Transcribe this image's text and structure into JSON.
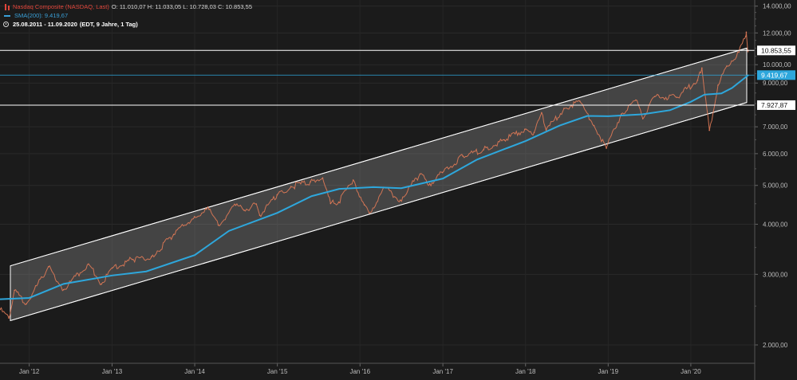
{
  "legend": {
    "title": "Nasdaq Composite (NASDAQ, Last)",
    "ohlc": "O: 11.010,07  H: 11.033,05  L: 10.728,03  C: 10.853,55",
    "sma": "SMA(200): 9.419,67",
    "range": "25.08.2011 - 11.09.2020",
    "range_note": "(EDT, 9 Jahre, 1 Tag)"
  },
  "colors": {
    "background": "#1b1b1b",
    "price": "#e07a57",
    "sma": "#2ea7dc",
    "channel_fill": "#8a8a8a",
    "lines": "#ffffff"
  },
  "chart_data": {
    "type": "line",
    "y_scale": "log",
    "ylim": [
      1800,
      14500
    ],
    "xlim": [
      "2011-08-25",
      "2020-09-11"
    ],
    "y_ticks": [
      {
        "value": 2000,
        "label": "2.000,00"
      },
      {
        "value": 3000,
        "label": "3.000,00"
      },
      {
        "value": 4000,
        "label": "4.000,00"
      },
      {
        "value": 5000,
        "label": "5.000,00"
      },
      {
        "value": 6000,
        "label": "6.000,00"
      },
      {
        "value": 7000,
        "label": "7.000,00"
      },
      {
        "value": 9000,
        "label": "9.000,00"
      },
      {
        "value": 10000,
        "label": "10.000,00"
      },
      {
        "value": 12000,
        "label": "12.000,00"
      },
      {
        "value": 14000,
        "label": "14.000,00"
      }
    ],
    "x_ticks": [
      {
        "date": "2012-01-01",
        "label": "Jan '12"
      },
      {
        "date": "2013-01-01",
        "label": "Jan '13"
      },
      {
        "date": "2014-01-01",
        "label": "Jan '14"
      },
      {
        "date": "2015-01-01",
        "label": "Jan '15"
      },
      {
        "date": "2016-01-01",
        "label": "Jan '16"
      },
      {
        "date": "2017-01-01",
        "label": "Jan '17"
      },
      {
        "date": "2018-01-01",
        "label": "Jan '18"
      },
      {
        "date": "2019-01-01",
        "label": "Jan '19"
      },
      {
        "date": "2020-01-01",
        "label": "Jan '20"
      }
    ],
    "series": [
      {
        "name": "Nasdaq Composite (NASDAQ, Last)",
        "role": "price",
        "x": [
          "2011-08-25",
          "2011-10-03",
          "2011-10-28",
          "2011-12-19",
          "2012-03-26",
          "2012-06-01",
          "2012-09-19",
          "2012-11-15",
          "2013-01-02",
          "2013-03-31",
          "2013-06-24",
          "2013-09-30",
          "2013-12-31",
          "2014-03-05",
          "2014-04-15",
          "2014-07-01",
          "2014-08-07",
          "2014-09-30",
          "2014-10-15",
          "2014-12-31",
          "2015-03-02",
          "2015-05-27",
          "2015-07-20",
          "2015-08-24",
          "2015-09-29",
          "2015-12-02",
          "2016-01-20",
          "2016-02-11",
          "2016-04-20",
          "2016-06-27",
          "2016-09-22",
          "2016-11-04",
          "2016-12-30",
          "2017-03-31",
          "2017-06-30",
          "2017-09-29",
          "2017-12-29",
          "2018-02-08",
          "2018-03-13",
          "2018-04-02",
          "2018-06-20",
          "2018-08-29",
          "2018-10-30",
          "2018-12-24",
          "2019-02-28",
          "2019-05-03",
          "2019-06-03",
          "2019-07-26",
          "2019-10-31",
          "2020-01-31",
          "2020-02-19",
          "2020-03-23",
          "2020-04-30",
          "2020-06-08",
          "2020-07-31",
          "2020-08-31",
          "2020-09-02",
          "2020-09-08",
          "2020-09-11"
        ],
        "values": [
          2450,
          2335,
          2737,
          2530,
          3134,
          2747,
          3183,
          2836,
          3112,
          3268,
          3320,
          3772,
          4177,
          4357,
          3980,
          4459,
          4335,
          4493,
          4213,
          4736,
          4963,
          5106,
          5218,
          4506,
          4543,
          5156,
          4472,
          4266,
          4940,
          4595,
          5339,
          5046,
          5383,
          5912,
          6140,
          6496,
          6903,
          6777,
          7588,
          6870,
          7781,
          8109,
          7050,
          6192,
          7533,
          8164,
          7333,
          8330,
          8292,
          9150,
          9817,
          6860,
          8890,
          9924,
          10745,
          11775,
          12056,
          10847,
          10853
        ]
      },
      {
        "name": "SMA(200): 9.419,67",
        "role": "sma",
        "x": [
          "2011-08-25",
          "2012-01-01",
          "2012-06-01",
          "2013-01-01",
          "2013-06-01",
          "2014-01-01",
          "2014-06-01",
          "2015-01-01",
          "2015-06-01",
          "2015-10-01",
          "2016-03-01",
          "2016-07-01",
          "2017-01-01",
          "2017-06-01",
          "2018-01-01",
          "2018-06-01",
          "2018-10-01",
          "2019-01-01",
          "2019-06-01",
          "2019-10-01",
          "2020-01-01",
          "2020-03-01",
          "2020-05-15",
          "2020-07-01",
          "2020-09-11"
        ],
        "values": [
          2600,
          2620,
          2840,
          2980,
          3050,
          3350,
          3850,
          4270,
          4700,
          4900,
          4950,
          4920,
          5200,
          5800,
          6450,
          7050,
          7450,
          7440,
          7520,
          7700,
          8080,
          8420,
          8480,
          8750,
          9419.67
        ]
      }
    ],
    "channel": {
      "upper": [
        {
          "x": "2011-08-25",
          "y": 3150
        },
        {
          "x": "2020-09-11",
          "y": 11000
        }
      ],
      "lower": [
        {
          "x": "2011-08-25",
          "y": 2300
        },
        {
          "x": "2020-09-11",
          "y": 8050
        }
      ]
    },
    "horizontal_lines": [
      {
        "value": 10853.55,
        "label": "10.853,55",
        "style": "white"
      },
      {
        "value": 9419.67,
        "label": "9.419,67",
        "style": "blue"
      },
      {
        "value": 7927.87,
        "label": "7.927,87",
        "style": "white"
      }
    ]
  }
}
